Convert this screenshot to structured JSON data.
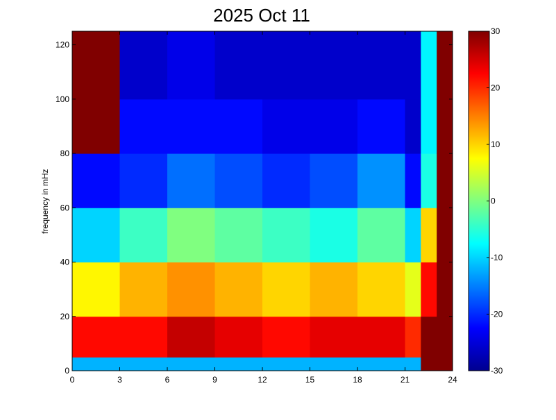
{
  "chart_data": {
    "type": "heatmap",
    "title": "2025 Oct 11",
    "xlabel": "",
    "ylabel": "frequency in mHz",
    "xlim": [
      0,
      24
    ],
    "ylim": [
      0,
      125
    ],
    "x_ticks": [
      0,
      3,
      6,
      9,
      12,
      15,
      18,
      21,
      24
    ],
    "y_ticks": [
      0,
      20,
      40,
      60,
      80,
      100,
      120
    ],
    "colorbar": {
      "colormap": "jet",
      "range": [
        -30,
        30
      ],
      "ticks": [
        -30,
        -20,
        -10,
        0,
        10,
        20,
        30
      ]
    },
    "grid": false,
    "time_bins": [
      "0-3",
      "3-6",
      "6-9",
      "9-12",
      "12-15",
      "15-18",
      "18-21",
      "21-22",
      "22-23",
      "23-24"
    ],
    "freq_bins": [
      "0-5",
      "5-20",
      "20-40",
      "40-60",
      "60-80",
      "80-100",
      "100-125"
    ],
    "values": [
      [
        -12,
        22,
        8,
        -10,
        -22,
        30,
        30
      ],
      [
        -12,
        22,
        12,
        -4,
        -20,
        -22,
        -26
      ],
      [
        -12,
        26,
        14,
        0,
        -16,
        -22,
        -24
      ],
      [
        -12,
        24,
        12,
        -2,
        -18,
        -22,
        -26
      ],
      [
        -12,
        22,
        10,
        -4,
        -20,
        -24,
        -26
      ],
      [
        -12,
        24,
        12,
        -6,
        -18,
        -24,
        -26
      ],
      [
        -12,
        24,
        10,
        -2,
        -14,
        -22,
        -26
      ],
      [
        -12,
        20,
        6,
        -10,
        -22,
        -26,
        -26
      ],
      [
        30,
        30,
        22,
        10,
        -6,
        -8,
        -8
      ],
      [
        30,
        30,
        30,
        30,
        30,
        30,
        30
      ]
    ]
  }
}
